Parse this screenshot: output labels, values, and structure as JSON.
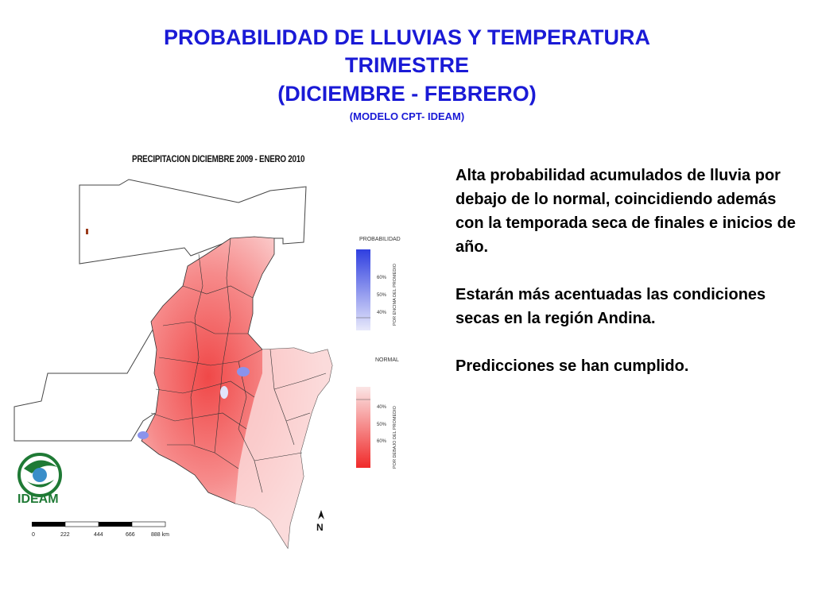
{
  "title": {
    "line1": "PROBABILIDAD DE LLUVIAS Y TEMPERATURA",
    "line2": "TRIMESTRE",
    "line3": "(DICIEMBRE - FEBRERO)",
    "line4": "(MODELO CPT- IDEAM)"
  },
  "map": {
    "title": "PRECIPITACION  DICIEMBRE 2009  - ENERO 2010",
    "legend": {
      "probabilidad_label": "PROBABILIDAD",
      "above_axis": "POR ENCIMA DEL PROMEDIO",
      "above_ticks": [
        "60%",
        "50%",
        "40%"
      ],
      "normal_label": "NORMAL",
      "below_axis": "POR DEBAJO DEL PROMEDIO",
      "below_ticks": [
        "40%",
        "50%",
        "60%"
      ],
      "colors": {
        "above": "#2f3fe0",
        "below": "#f03232"
      }
    },
    "scale_bar": [
      "0",
      "222",
      "444",
      "666",
      "888 km"
    ],
    "north_label": "N"
  },
  "logo": {
    "text": "IDEAM",
    "color": "#1f7a35"
  },
  "body": {
    "p1": "Alta  probabilidad acumulados de lluvia por debajo de lo normal, coincidiendo además con la temporada seca de finales e inicios de año.",
    "p2": "Estarán más acentuadas  las condiciones secas en la región Andina.",
    "p3": "Predicciones se han  cumplido."
  }
}
